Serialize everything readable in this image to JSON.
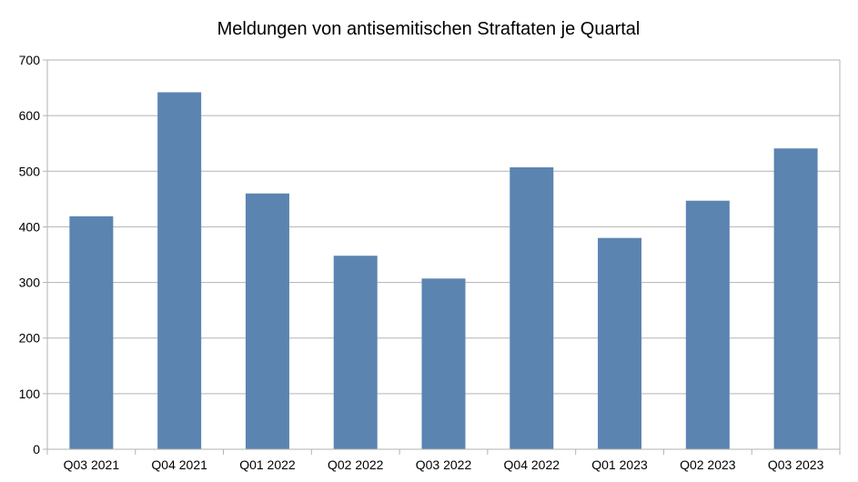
{
  "chart_data": {
    "type": "bar",
    "title": "Meldungen von antisemitischen Straftaten je Quartal",
    "xlabel": "",
    "ylabel": "",
    "categories": [
      "Q03 2021",
      "Q04 2021",
      "Q01 2022",
      "Q02 2022",
      "Q03 2022",
      "Q04 2022",
      "Q01 2023",
      "Q02 2023",
      "Q03 2023"
    ],
    "values": [
      419,
      642,
      460,
      348,
      307,
      507,
      380,
      447,
      541
    ],
    "ylim": [
      0,
      700
    ],
    "yticks": [
      "0",
      "100",
      "200",
      "300",
      "400",
      "500",
      "600",
      "700"
    ],
    "grid": true,
    "legend": "none",
    "bar_color": "#5b84b1",
    "grid_color": "#b3b3b3"
  }
}
